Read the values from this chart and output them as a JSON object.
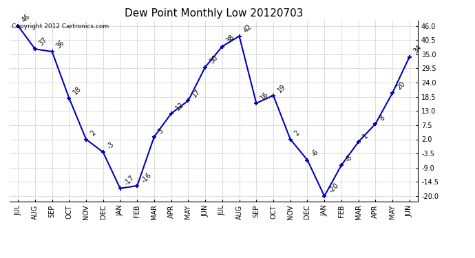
{
  "title": "Dew Point Monthly Low 20120703",
  "copyright": "Copyright 2012 Cartronics.com",
  "months": [
    "JUL",
    "AUG",
    "SEP",
    "OCT",
    "NOV",
    "DEC",
    "JAN",
    "FEB",
    "MAR",
    "APR",
    "MAY",
    "JUN",
    "JUL",
    "AUG",
    "SEP",
    "OCT",
    "NOV",
    "DEC",
    "JAN",
    "FEB",
    "MAR",
    "APR",
    "MAY",
    "JUN"
  ],
  "values": [
    46,
    37,
    36,
    18,
    2,
    -3,
    -17,
    -16,
    3,
    12,
    17,
    30,
    38,
    42,
    16,
    19,
    2,
    -6,
    -20,
    -8,
    1,
    8,
    20,
    34
  ],
  "line_color": "#0000bb",
  "marker_color": "#0000bb",
  "bg_color": "#ffffff",
  "grid_color": "#bbbbbb",
  "ylim_min": -22,
  "ylim_max": 48,
  "yticks": [
    -20.0,
    -14.5,
    -9.0,
    -3.5,
    2.0,
    7.5,
    13.0,
    18.5,
    24.0,
    29.5,
    35.0,
    40.5,
    46.0
  ],
  "ytick_labels": [
    "-20.0",
    "-14.5",
    "-9.0",
    "-3.5",
    "2.0",
    "7.5",
    "13.0",
    "18.5",
    "24.0",
    "29.5",
    "35.0",
    "40.5",
    "46.0"
  ],
  "title_fontsize": 11,
  "label_fontsize": 7,
  "tick_fontsize": 7,
  "copyright_fontsize": 6.5
}
